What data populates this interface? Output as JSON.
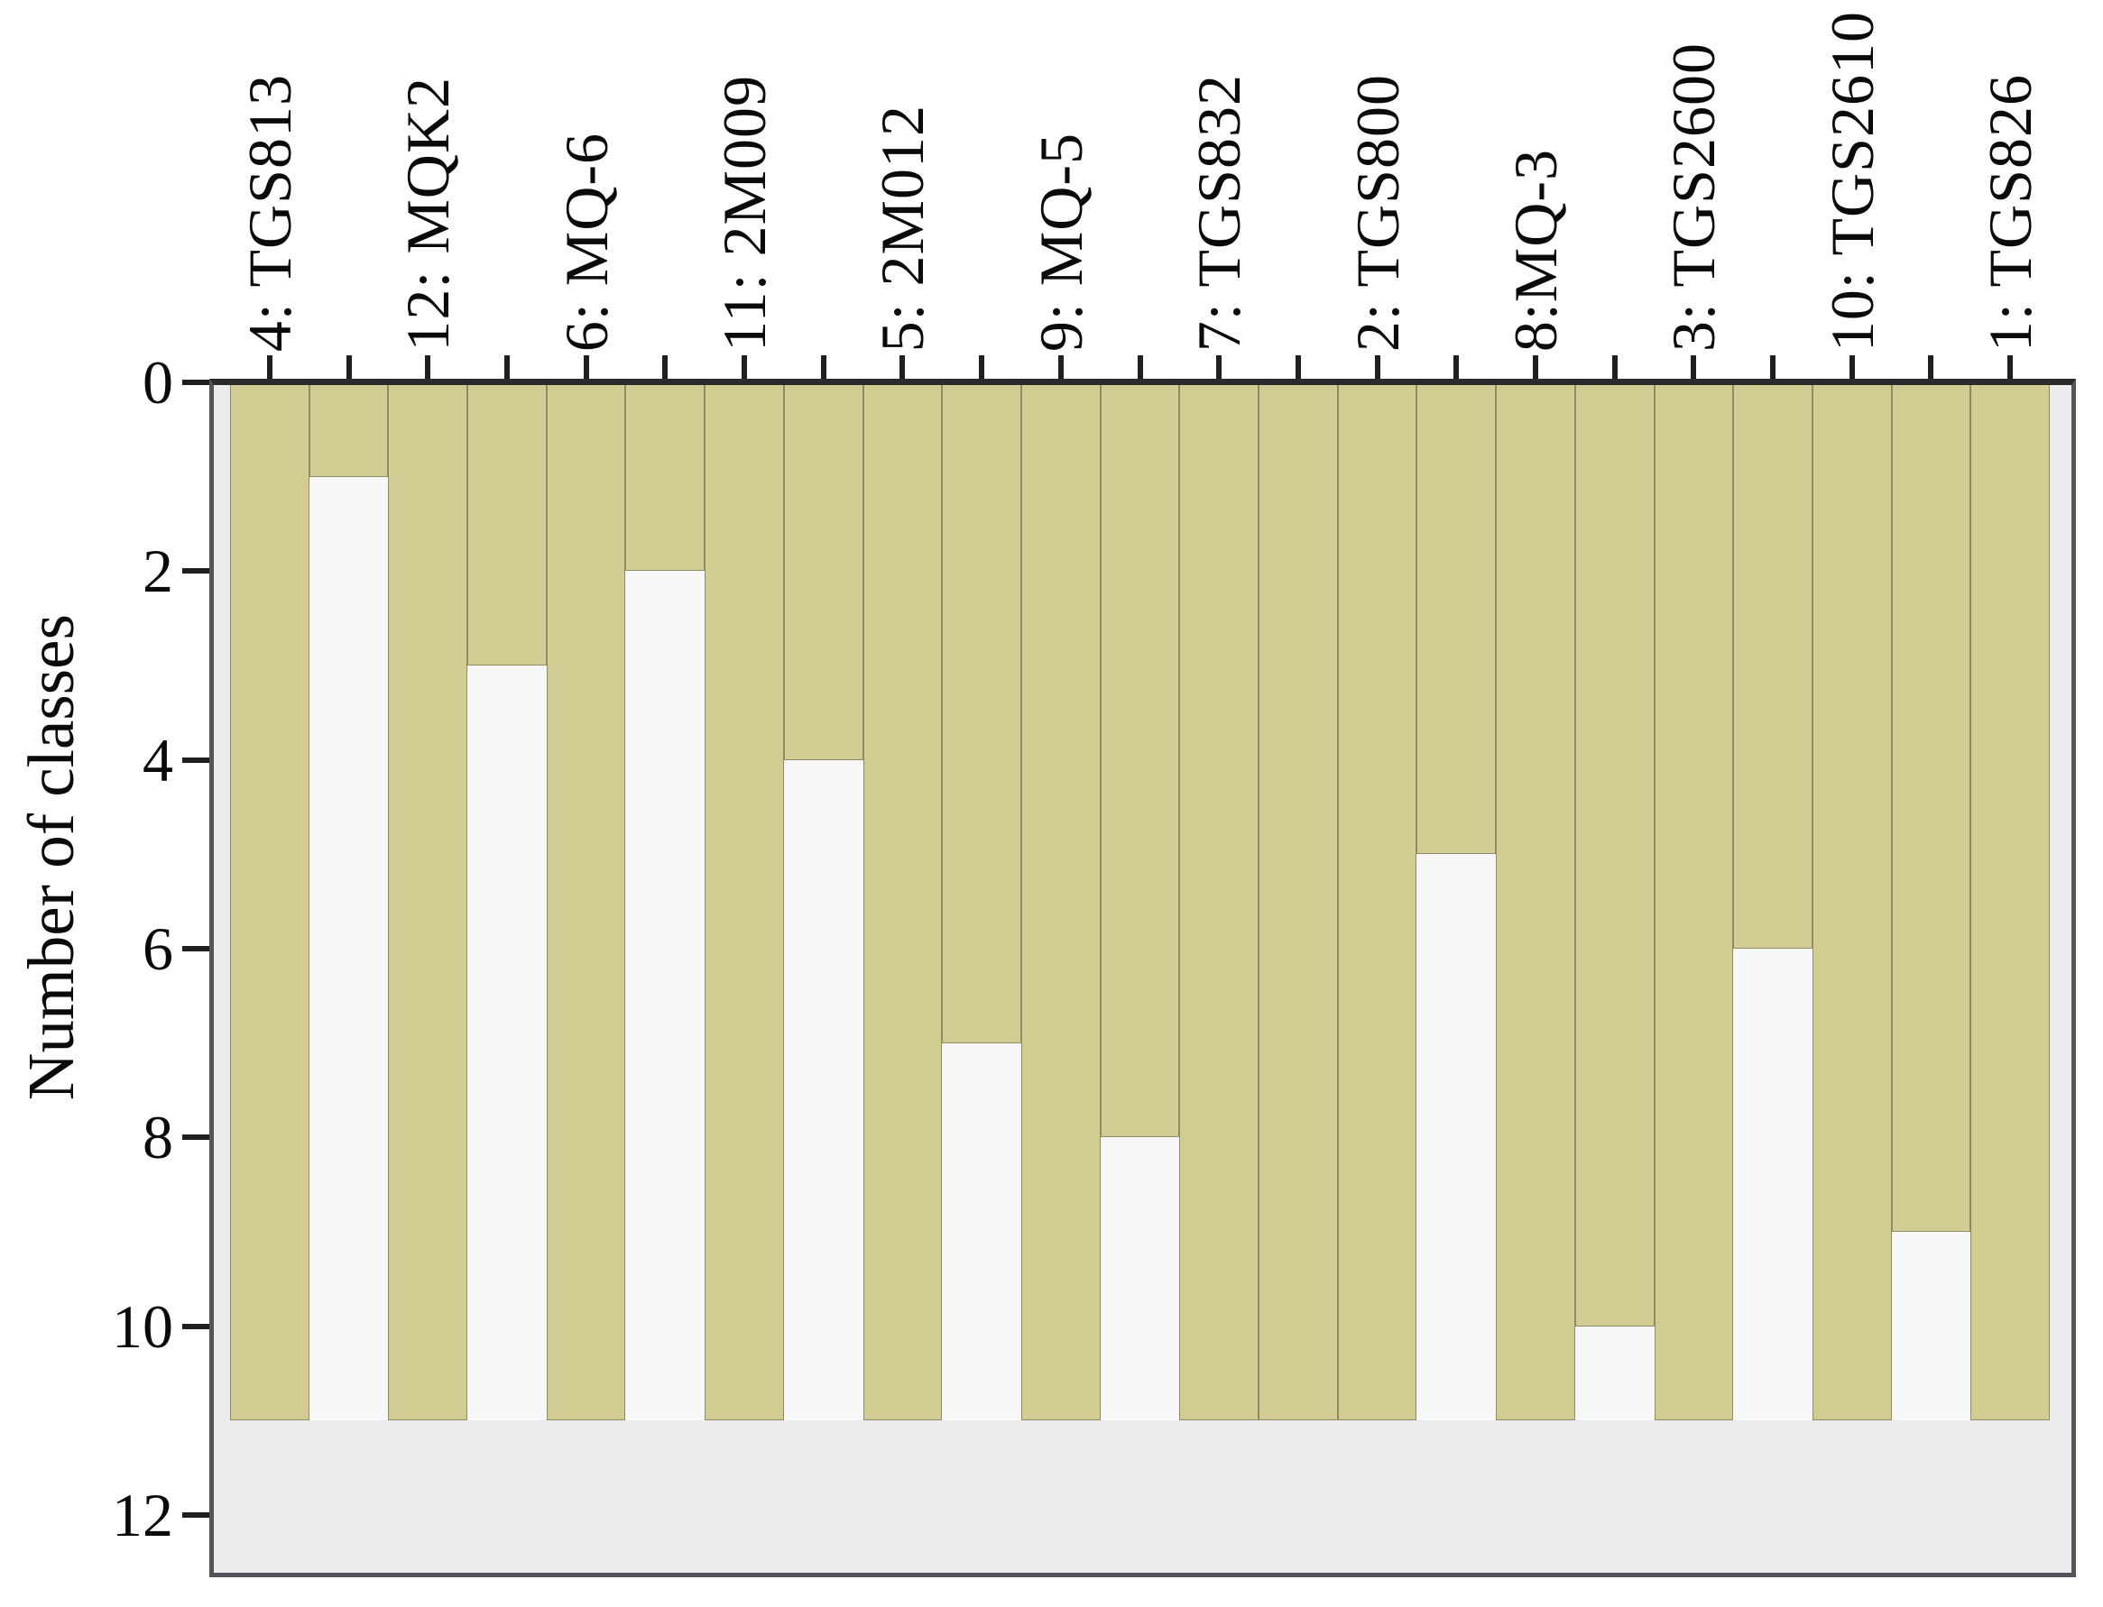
{
  "chart_data": {
    "type": "bar",
    "title": "",
    "xlabel": "",
    "ylabel": "Number of classes",
    "legend": "none",
    "grid": false,
    "y_axis": {
      "label": "Number of classes",
      "min": 0,
      "max": 12.6,
      "ticks": [
        0,
        2,
        4,
        6,
        8,
        10,
        12
      ],
      "inverted": true
    },
    "bar_full_extent": 11,
    "categories": [
      "4: TGS813",
      "12: MQK2",
      "6: MQ-6",
      "11: 2M009",
      "5: 2M012",
      "9: MQ-5",
      "7: TGS832",
      "2: TGS800",
      "8:MQ-3",
      "3: TGS2600",
      "10: TGS2610",
      "1: TGS826"
    ],
    "series": [
      {
        "name": "full-bar",
        "values": [
          11,
          11,
          11,
          11,
          11,
          11,
          11,
          11,
          11,
          11,
          11,
          11
        ]
      },
      {
        "name": "second-bar",
        "values": [
          1,
          3,
          2,
          4,
          7,
          8,
          11,
          5,
          10,
          6,
          9,
          0
        ]
      }
    ],
    "slots": [
      {
        "label": "4: TGS813",
        "value": 11
      },
      {
        "value": 1
      },
      {
        "label": "12: MQK2",
        "value": 11
      },
      {
        "value": 3
      },
      {
        "label": "6: MQ-6",
        "value": 11
      },
      {
        "value": 2
      },
      {
        "label": "11: 2M009",
        "value": 11
      },
      {
        "value": 4
      },
      {
        "label": "5: 2M012",
        "value": 11
      },
      {
        "value": 7
      },
      {
        "label": "9: MQ-5",
        "value": 11
      },
      {
        "value": 8
      },
      {
        "label": "7: TGS832",
        "value": 11
      },
      {
        "value": 11
      },
      {
        "label": "2: TGS800",
        "value": 11
      },
      {
        "value": 5
      },
      {
        "label": "8:MQ-3",
        "value": 11
      },
      {
        "value": 10
      },
      {
        "label": "3: TGS2600",
        "value": 11
      },
      {
        "value": 6
      },
      {
        "label": "10: TGS2610",
        "value": 11
      },
      {
        "value": 9
      },
      {
        "label": "1: TGS826",
        "value": 11
      }
    ]
  },
  "colors": {
    "bar_fill": "#d2cb92",
    "bar_edge": "#8e8b66",
    "slot_background": "#f8f8f9",
    "plot_background": "#ececee",
    "frame": "#55545a",
    "top_axis_line": "#2b2b2b",
    "tick": "#1f1f1f",
    "text": "#0a0a0a",
    "page_background": "#ffffff"
  }
}
